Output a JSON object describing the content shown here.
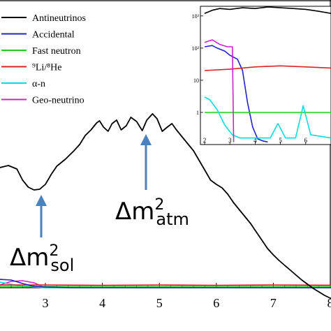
{
  "chart_data": [
    {
      "type": "line",
      "title": "",
      "xlabel": "",
      "ylabel": "",
      "xlim": [
        2.2,
        8.2
      ],
      "x_ticks": [
        "3",
        "4",
        "5",
        "6",
        "7",
        "8"
      ],
      "grid": false,
      "legend": "top-left",
      "series": [
        {
          "name": "Antineutrinos",
          "color": "#000000",
          "points": [
            [
              2.2,
              240
            ],
            [
              2.35,
              237
            ],
            [
              2.5,
              242
            ],
            [
              2.6,
              258
            ],
            [
              2.7,
              268
            ],
            [
              2.8,
              272
            ],
            [
              2.9,
              271
            ],
            [
              3.0,
              264
            ],
            [
              3.1,
              250
            ],
            [
              3.2,
              238
            ],
            [
              3.35,
              228
            ],
            [
              3.5,
              216
            ],
            [
              3.6,
              207
            ],
            [
              3.7,
              194
            ],
            [
              3.8,
              186
            ],
            [
              3.9,
              176
            ],
            [
              3.95,
              173
            ],
            [
              4.02,
              182
            ],
            [
              4.1,
              188
            ],
            [
              4.17,
              177
            ],
            [
              4.25,
              172
            ],
            [
              4.33,
              186
            ],
            [
              4.42,
              180
            ],
            [
              4.5,
              168
            ],
            [
              4.6,
              174
            ],
            [
              4.7,
              187
            ],
            [
              4.78,
              172
            ],
            [
              4.88,
              163
            ],
            [
              4.96,
              170
            ],
            [
              5.05,
              188
            ],
            [
              5.14,
              182
            ],
            [
              5.22,
              177
            ],
            [
              5.3,
              186
            ],
            [
              5.4,
              196
            ],
            [
              5.5,
              206
            ],
            [
              5.6,
              216
            ],
            [
              5.7,
              230
            ],
            [
              5.8,
              244
            ],
            [
              5.9,
              258
            ],
            [
              6.0,
              264
            ],
            [
              6.1,
              269
            ],
            [
              6.2,
              278
            ],
            [
              6.3,
              290
            ],
            [
              6.4,
              300
            ],
            [
              6.5,
              310
            ],
            [
              6.6,
              320
            ],
            [
              6.7,
              332
            ],
            [
              6.8,
              344
            ],
            [
              6.9,
              356
            ],
            [
              7.0,
              365
            ],
            [
              7.1,
              373
            ],
            [
              7.2,
              380
            ],
            [
              7.3,
              387
            ],
            [
              7.4,
              394
            ],
            [
              7.5,
              401
            ],
            [
              7.6,
              407
            ],
            [
              7.7,
              413
            ],
            [
              7.8,
              418
            ],
            [
              7.9,
              423
            ],
            [
              8.0,
              427
            ],
            [
              8.1,
              430
            ],
            [
              8.2,
              432
            ]
          ]
        },
        {
          "name": "Accidental",
          "color": "#2222cc",
          "points": [
            [
              2.2,
              400
            ],
            [
              2.4,
              401
            ],
            [
              2.6,
              406
            ],
            [
              2.8,
              410
            ],
            [
              3.0,
              411
            ],
            [
              3.5,
              412
            ],
            [
              8.2,
              412
            ]
          ]
        },
        {
          "name": "Fast neutron",
          "color": "#22cc22",
          "points": [
            [
              2.2,
              410
            ],
            [
              8.2,
              410
            ]
          ]
        },
        {
          "name": "⁹Li/⁸He",
          "color": "#dd2222",
          "points": [
            [
              2.2,
              408
            ],
            [
              3.0,
              408
            ],
            [
              4.0,
              408.5
            ],
            [
              5.0,
              408
            ],
            [
              6.0,
              408.5
            ],
            [
              7.0,
              408
            ],
            [
              8.2,
              408.5
            ]
          ]
        },
        {
          "name": "α-n",
          "color": "#00dddd",
          "points": [
            [
              2.2,
              404
            ],
            [
              2.6,
              410
            ],
            [
              3.0,
              412
            ],
            [
              8.2,
              412
            ]
          ]
        },
        {
          "name": "Geo-neutrino",
          "color": "#cc22cc",
          "points": [
            [
              2.2,
              408
            ],
            [
              2.4,
              403
            ],
            [
              2.6,
              402
            ],
            [
              2.8,
              405
            ],
            [
              3.0,
              412
            ],
            [
              8.2,
              412
            ]
          ]
        }
      ],
      "annotations": [
        {
          "label": "Δm²sol",
          "x": 2.95
        },
        {
          "label": "Δm²atm",
          "x": 4.75
        }
      ]
    },
    {
      "type": "line",
      "title": "",
      "yscale": "log",
      "xlim": [
        2,
        7
      ],
      "x_ticks": [
        "2",
        "3",
        "4",
        "5",
        "6"
      ],
      "y_ticks": [
        "1",
        "10",
        "10²",
        "10³"
      ],
      "grid": false,
      "series": [
        {
          "name": "Antineutrinos",
          "color": "#000000",
          "points": [
            [
              2.0,
              1200
            ],
            [
              2.3,
              1500
            ],
            [
              2.6,
              1700
            ],
            [
              3.0,
              1600
            ],
            [
              3.5,
              1800
            ],
            [
              4.0,
              1700
            ],
            [
              4.5,
              1900
            ],
            [
              5.0,
              1800
            ],
            [
              5.5,
              1700
            ],
            [
              6.0,
              1600
            ],
            [
              6.5,
              1400
            ],
            [
              7.0,
              1200
            ]
          ]
        },
        {
          "name": "Accidental",
          "color": "#2222cc",
          "points": [
            [
              2.0,
              110
            ],
            [
              2.3,
              120
            ],
            [
              2.5,
              100
            ],
            [
              2.8,
              80
            ],
            [
              3.0,
              60
            ],
            [
              3.3,
              45
            ],
            [
              3.5,
              20
            ],
            [
              3.7,
              2
            ],
            [
              3.9,
              0.35
            ],
            [
              4.1,
              0.15
            ],
            [
              4.3,
              0.13
            ],
            [
              4.5,
              0.12
            ]
          ]
        },
        {
          "name": "Fast neutron",
          "color": "#22cc22",
          "points": [
            [
              2.0,
              1
            ],
            [
              7.0,
              1
            ]
          ]
        },
        {
          "name": "⁹Li/⁸He",
          "color": "#dd2222",
          "points": [
            [
              2.0,
              20
            ],
            [
              3.0,
              22
            ],
            [
              4.0,
              26
            ],
            [
              5.0,
              28
            ],
            [
              6.0,
              26
            ],
            [
              7.0,
              24
            ]
          ]
        },
        {
          "name": "α-n",
          "color": "#00dddd",
          "points": [
            [
              2.0,
              3
            ],
            [
              2.2,
              2.5
            ],
            [
              2.5,
              1.2
            ],
            [
              2.8,
              0.4
            ],
            [
              3.1,
              0.2
            ],
            [
              3.4,
              0.16
            ],
            [
              4.6,
              0.16
            ],
            [
              4.9,
              0.45
            ],
            [
              5.2,
              0.16
            ],
            [
              5.6,
              0.16
            ],
            [
              5.9,
              1.6
            ],
            [
              6.2,
              0.2
            ],
            [
              7.0,
              0.16
            ]
          ]
        },
        {
          "name": "Geo-neutrino",
          "color": "#cc22cc",
          "points": [
            [
              2.0,
              150
            ],
            [
              2.3,
              180
            ],
            [
              2.6,
              130
            ],
            [
              2.9,
              110
            ],
            [
              3.1,
              110
            ],
            [
              3.15,
              0.12
            ]
          ]
        }
      ]
    }
  ],
  "legend_items": [
    {
      "label": "Antineutrinos",
      "color": "#000000"
    },
    {
      "label": "Accidental",
      "color": "#2222cc"
    },
    {
      "label": "Fast neutron",
      "color": "#22cc22"
    },
    {
      "label": "⁹Li/⁸He",
      "color": "#dd2222"
    },
    {
      "label": "α-n",
      "color": "#00dddd"
    },
    {
      "label": "Geo-neutrino",
      "color": "#cc22cc"
    }
  ],
  "annotation_sol": {
    "base": "Δm",
    "sup": "2",
    "sub": "sol"
  },
  "annotation_atm": {
    "base": "Δm",
    "sup": "2",
    "sub": "atm"
  }
}
